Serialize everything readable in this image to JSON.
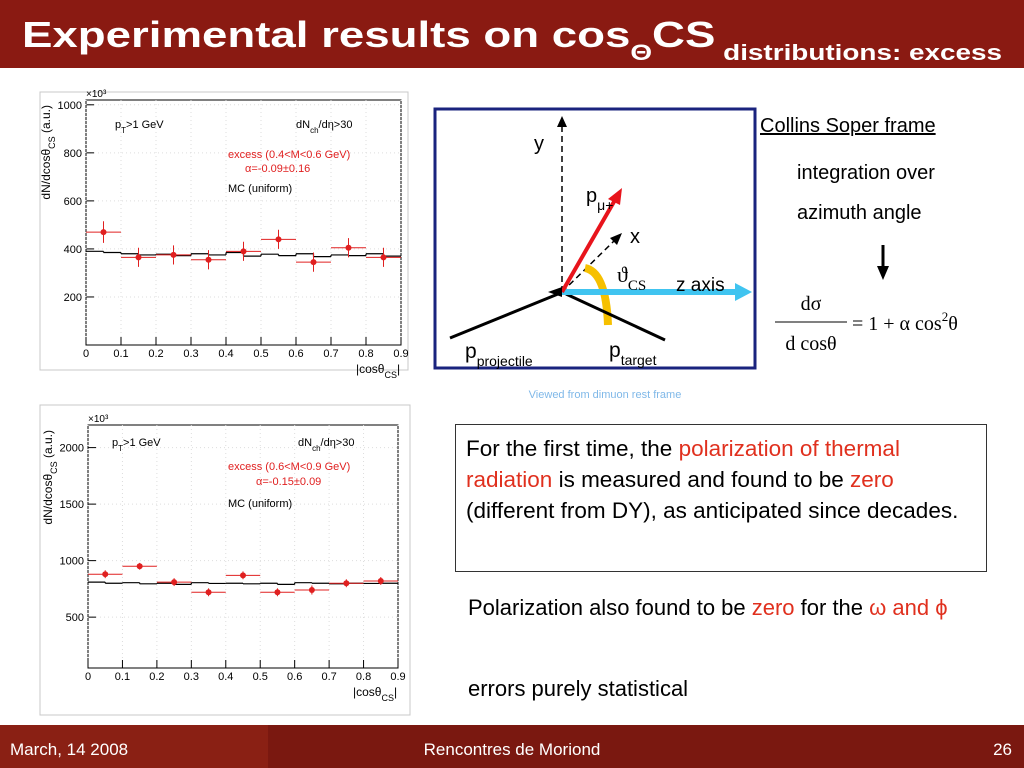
{
  "slide": {
    "title": [
      "Experimental results on cos",
      "Θ",
      "CS",
      " distributions: excess"
    ],
    "diagram": {
      "y": [
        "y"
      ],
      "p_mu": [
        "p",
        "μ+"
      ],
      "x": [
        "x"
      ],
      "theta": [
        "ϑ",
        "CS"
      ],
      "z": [
        "z axis"
      ],
      "p_proj": [
        "p",
        "projectile"
      ],
      "p_targ": [
        "p",
        "target"
      ],
      "caption": [
        "Viewed from dimuon  rest frame"
      ]
    },
    "frame_title": "Collins Soper frame",
    "note": [
      "integration over",
      "azimuth angle"
    ],
    "formula": {
      "num": "dσ",
      "den": "d cosθ",
      "rhs": "= 1 + α cos",
      "sup": "2",
      "end": "θ"
    },
    "box": [
      {
        "text": "For the first time, the ",
        "color": "#000000"
      },
      {
        "text": "polarization of thermal radiation",
        "color": "#e0301e"
      },
      {
        "text": "  is measured and found to be ",
        "color": "#000000"
      },
      {
        "text": "zero",
        "color": "#e0301e"
      },
      {
        "text": " (different from DY), as anticipated since decades.",
        "color": "#000000"
      }
    ],
    "polar": [
      {
        "text": "Polarization also found to be ",
        "color": "#000000"
      },
      {
        "text": "zero",
        "color": "#e0301e"
      },
      {
        "text": " for the ",
        "color": "#000000"
      },
      {
        "text": "ω and ϕ",
        "color": "#e0301e"
      }
    ],
    "errors_note": "errors purely statistical",
    "footer": {
      "date": "March, 14 2008",
      "event": "Rencontres de Moriond",
      "page": "26"
    }
  },
  "chart_data": [
    {
      "type": "errorbar",
      "multiplier": "×10³",
      "ylabel": [
        "dN/dcosθ",
        "CS",
        " (a.u.)"
      ],
      "xlabel": [
        "|cosθ",
        "CS",
        "|"
      ],
      "cuts": [
        [
          "p",
          "T",
          ">1 GeV"
        ],
        [
          "dN",
          "ch",
          "/dη>30"
        ]
      ],
      "alpha": "α=-0.09±0.16",
      "grid": true,
      "xlim": [
        0,
        0.9
      ],
      "xticks": [
        0,
        0.1,
        0.2,
        0.3,
        0.4,
        0.5,
        0.6,
        0.7,
        0.8,
        0.9
      ],
      "ylim": [
        0,
        1020
      ],
      "yticks": [
        200,
        400,
        600,
        800,
        1000
      ],
      "series": [
        {
          "name": "excess (0.4<M<0.6 GeV)",
          "color": "#e02020",
          "x": [
            0.05,
            0.15,
            0.25,
            0.35,
            0.45,
            0.55,
            0.65,
            0.75,
            0.85
          ],
          "values": [
            470,
            365,
            375,
            355,
            390,
            440,
            345,
            405,
            365
          ],
          "errors": [
            45,
            40,
            40,
            40,
            40,
            40,
            40,
            40,
            40
          ],
          "x_error": 0.05
        }
      ],
      "mc": {
        "name": "MC (uniform)",
        "color": "#000000",
        "bins": [
          0,
          0.05,
          0.1,
          0.15,
          0.2,
          0.25,
          0.3,
          0.35,
          0.4,
          0.45,
          0.5,
          0.55,
          0.6,
          0.65,
          0.7,
          0.75,
          0.8,
          0.85,
          0.9
        ],
        "values": [
          390,
          385,
          380,
          375,
          378,
          372,
          380,
          375,
          385,
          370,
          378,
          372,
          380,
          368,
          375,
          372,
          380,
          370
        ]
      }
    },
    {
      "type": "errorbar",
      "multiplier": "×10³",
      "ylabel": [
        "dN/dcosθ",
        "CS",
        " (a.u.)"
      ],
      "xlabel": [
        "|cosθ",
        "CS",
        "|"
      ],
      "cuts": [
        [
          "p",
          "T",
          ">1 GeV"
        ],
        [
          "dN",
          "ch",
          "/dη>30"
        ]
      ],
      "alpha": "α=-0.15±0.09",
      "grid": true,
      "xlim": [
        0,
        0.9
      ],
      "xticks": [
        0,
        0.1,
        0.2,
        0.3,
        0.4,
        0.5,
        0.6,
        0.7,
        0.8,
        0.9
      ],
      "ylim": [
        50,
        2200
      ],
      "yticks": [
        500,
        1000,
        1500,
        2000
      ],
      "series": [
        {
          "name": "excess (0.6<M<0.9 GeV)",
          "color": "#e02020",
          "x": [
            0.05,
            0.15,
            0.25,
            0.35,
            0.45,
            0.55,
            0.65,
            0.75,
            0.85
          ],
          "values": [
            880,
            950,
            810,
            720,
            870,
            720,
            740,
            800,
            820
          ],
          "errors": [
            35,
            30,
            35,
            35,
            35,
            35,
            40,
            35,
            35
          ],
          "x_error": 0.05
        }
      ],
      "mc": {
        "name": "MC (uniform)",
        "color": "#000000",
        "bins": [
          0,
          0.05,
          0.1,
          0.15,
          0.2,
          0.25,
          0.3,
          0.35,
          0.4,
          0.45,
          0.5,
          0.55,
          0.6,
          0.65,
          0.7,
          0.75,
          0.8,
          0.85,
          0.9
        ],
        "values": [
          810,
          800,
          805,
          795,
          800,
          790,
          805,
          798,
          800,
          795,
          800,
          790,
          805,
          800,
          795,
          800,
          798,
          800
        ]
      }
    }
  ]
}
